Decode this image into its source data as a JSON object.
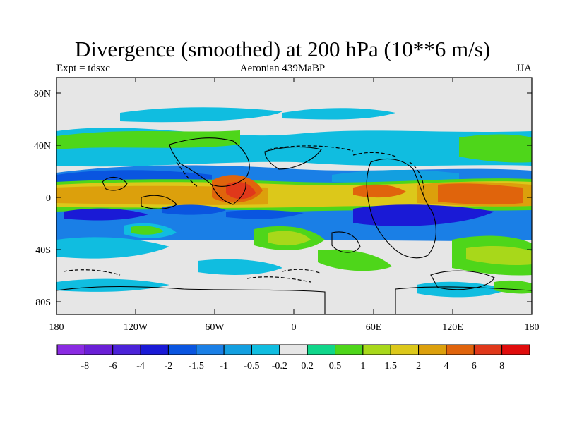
{
  "header": {
    "title": "Divergence (smoothed) at 200 hPa (10**6 m/s)",
    "experiment": "Expt = tdsxc",
    "period": "Aeronian 439MaBP",
    "season": "JJA"
  },
  "axes": {
    "lat_labels": [
      "80N",
      "40N",
      "0",
      "40S",
      "80S"
    ],
    "lon_labels": [
      "180",
      "120W",
      "60W",
      "0",
      "60E",
      "120E",
      "180"
    ]
  },
  "colorbar": {
    "labels": [
      "-8",
      "-6",
      "-4",
      "-2",
      "-1.5",
      "-1",
      "-0.5",
      "-0.2",
      "0.2",
      "0.5",
      "1",
      "1.5",
      "2",
      "4",
      "6",
      "8"
    ],
    "colors": [
      "#8a2be2",
      "#6a1fd6",
      "#4b22d8",
      "#1a1ad6",
      "#0a55e0",
      "#1a7fe6",
      "#139fe0",
      "#10bde0",
      "#e6e6e6",
      "#10d68a",
      "#4ed61a",
      "#a8d81a",
      "#dcc81a",
      "#dca00c",
      "#e0640c",
      "#e0381a",
      "#e00c0c"
    ]
  },
  "chart_data": {
    "type": "heatmap",
    "title": "Divergence (smoothed) at 200 hPa (10**6 m/s)",
    "variable": "divergence",
    "units": "10**6 m/s",
    "pressure_level_hPa": 200,
    "season": "JJA",
    "period": "Aeronian 439MaBP",
    "experiment": "tdsxc",
    "lon_range": [
      -180,
      180
    ],
    "lat_range": [
      -90,
      90
    ],
    "contour_levels": [
      -8,
      -6,
      -4,
      -2,
      -1.5,
      -1,
      -0.5,
      -0.2,
      0.2,
      0.5,
      1,
      1.5,
      2,
      4,
      6,
      8
    ],
    "features": [
      {
        "name": "equatorial divergence band (west)",
        "lon": [
          -170,
          -90
        ],
        "lat": [
          -4,
          4
        ],
        "max": 4
      },
      {
        "name": "equatorial divergence max (west)",
        "lon": [
          -55,
          -30
        ],
        "lat": [
          -5,
          10
        ],
        "max": 6
      },
      {
        "name": "equatorial divergence max (east)",
        "lon": [
          60,
          180
        ],
        "lat": [
          -5,
          10
        ],
        "max": 6
      },
      {
        "name": "convergence band south of equator",
        "lon": [
          -150,
          180
        ],
        "lat": [
          -25,
          -10
        ],
        "min": -4
      },
      {
        "name": "convergence band north of equator",
        "lon": [
          -180,
          0
        ],
        "lat": [
          10,
          25
        ],
        "min": -2
      },
      {
        "name": "subtropical divergence N",
        "lon": [
          -180,
          -40
        ],
        "lat": [
          35,
          55
        ],
        "max": 1
      }
    ]
  }
}
